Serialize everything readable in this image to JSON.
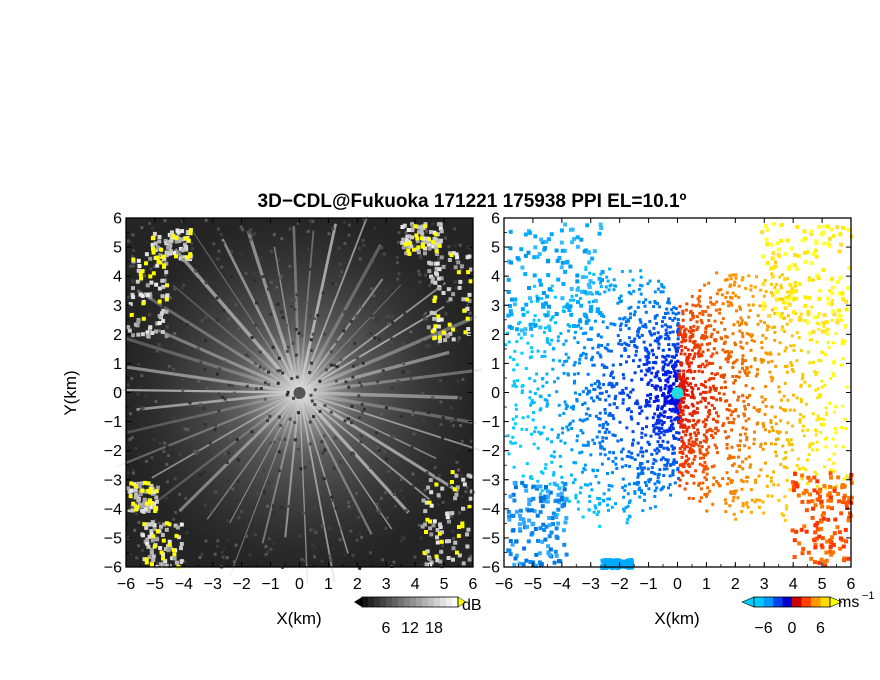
{
  "title": "3D−CDL@Fukuoka 171221 175938 PPI EL=10.1º",
  "chart_data": [
    {
      "type": "heatmap",
      "panel": "left",
      "quantity": "SNR",
      "xlabel": "X(km)",
      "ylabel": "Y(km)",
      "xlim": [
        -6,
        6
      ],
      "ylim": [
        -6,
        6
      ],
      "x_ticks": [
        -6,
        -5,
        -4,
        -3,
        -2,
        -1,
        0,
        1,
        2,
        3,
        4,
        5,
        6
      ],
      "y_ticks": [
        -6,
        -5,
        -4,
        -3,
        -2,
        -1,
        0,
        1,
        2,
        3,
        4,
        5,
        6
      ],
      "colorscale": "grayscale with yellow above max",
      "colorbar": {
        "unit": "dB",
        "ticks": [
          6,
          12,
          18
        ]
      },
      "center_marker_color": "#555555"
    },
    {
      "type": "heatmap",
      "panel": "right",
      "quantity": "Doppler velocity",
      "xlabel": "X(km)",
      "xlim": [
        -6,
        6
      ],
      "ylim": [
        -6,
        6
      ],
      "x_ticks": [
        -6,
        -5,
        -4,
        -3,
        -2,
        -1,
        0,
        1,
        2,
        3,
        4,
        5,
        6
      ],
      "y_ticks": [
        -6,
        -5,
        -4,
        -3,
        -2,
        -1,
        0,
        1,
        2,
        3,
        4,
        5,
        6
      ],
      "colorscale": "cyan-blue-red-yellow diverging",
      "colorbar": {
        "unit": "ms",
        "unit_exp": "−1",
        "ticks": [
          -6,
          0,
          6
        ]
      },
      "center_marker_color": "#22dddd"
    }
  ],
  "colors": {
    "neg_light": "#00ccff",
    "neg_dark": "#0000dd",
    "pos_dark": "#dd0000",
    "pos_light": "#ffff00",
    "snr_high": "#ffff00"
  }
}
